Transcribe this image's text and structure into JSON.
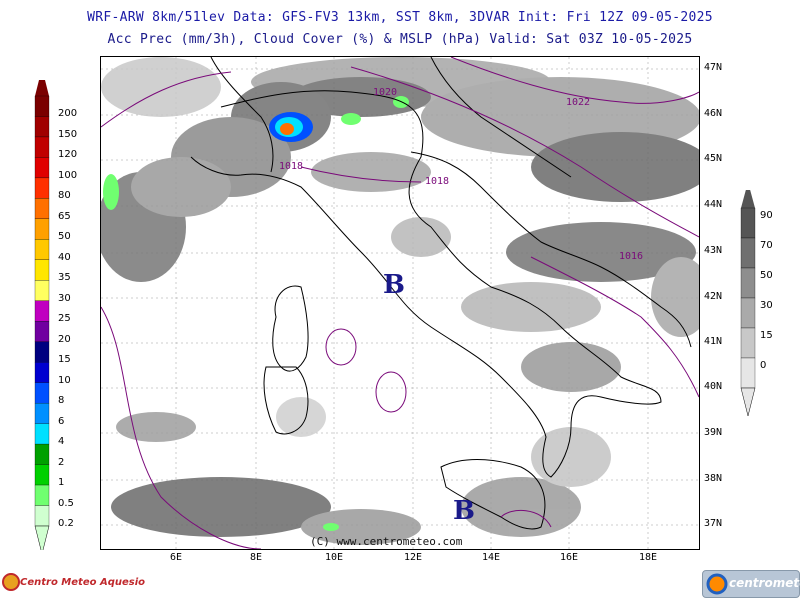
{
  "header": {
    "line1": "WRF-ARW 8km/51lev  Data: GFS-FV3 13km, SST 8km, 3DVAR  Init: Fri 12Z 09-05-2025",
    "line2": "Acc Prec (mm/3h), Cloud Cover (%) & MSLP (hPa)  Valid: Sat 03Z 10-05-2025"
  },
  "latitude_labels": [
    "47N",
    "46N",
    "45N",
    "44N",
    "43N",
    "42N",
    "41N",
    "40N",
    "39N",
    "38N",
    "37N"
  ],
  "longitude_labels": [
    "6E",
    "8E",
    "10E",
    "12E",
    "14E",
    "16E",
    "18E"
  ],
  "precip_legend": {
    "values": [
      "200",
      "150",
      "120",
      "100",
      "80",
      "65",
      "50",
      "40",
      "35",
      "30",
      "25",
      "20",
      "15",
      "10",
      "8",
      "6",
      "4",
      "2",
      "1",
      "0.5",
      "0.2"
    ],
    "colors": [
      "#7a0000",
      "#a00000",
      "#c00000",
      "#e00000",
      "#ff3000",
      "#ff7000",
      "#ffa000",
      "#ffc800",
      "#ffe600",
      "#ffff60",
      "#c000c0",
      "#7000a0",
      "#000080",
      "#0000d0",
      "#0050ff",
      "#0090ff",
      "#00e0ff",
      "#00a000",
      "#00d000",
      "#70ff70",
      "#d0ffd0"
    ]
  },
  "cloud_legend": {
    "values": [
      "90",
      "70",
      "50",
      "30",
      "15",
      "0"
    ],
    "colors": [
      "#555555",
      "#707070",
      "#8e8e8e",
      "#aaaaaa",
      "#c8c8c8",
      "#e6e6e6"
    ]
  },
  "isobar_labels": [
    "1020",
    "1022",
    "1018",
    "1018",
    "1016"
  ],
  "lows": [
    "B",
    "B"
  ],
  "copyright": "(C) www.centrometeo.com",
  "logos": {
    "left": "Centro Meteo Aquesio",
    "right": "centrometeo"
  }
}
